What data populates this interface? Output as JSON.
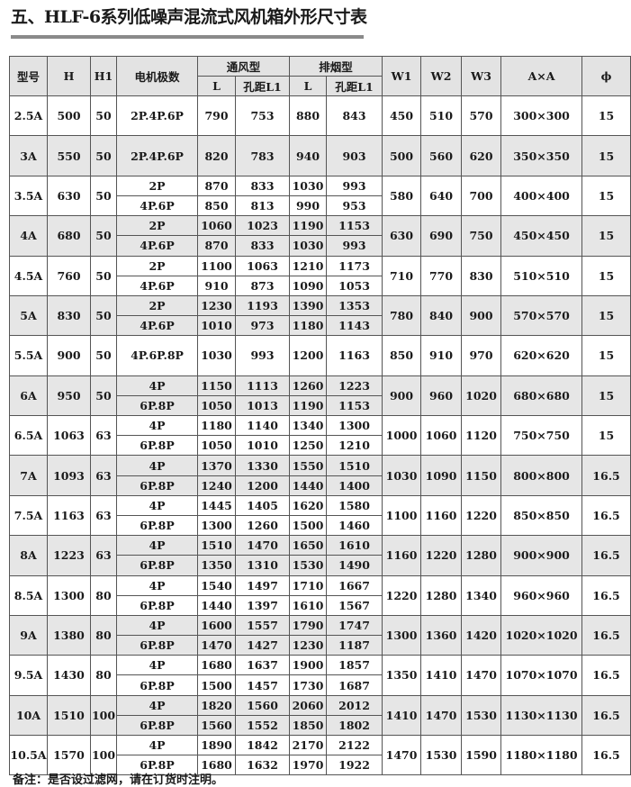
{
  "title": "五、HLF-6系列低噪声混流式风机箱外形尺寸表",
  "header": {
    "model": "型号",
    "H": "H",
    "H1": "H1",
    "poles": "电机极数",
    "vent": "通风型",
    "smoke": "排烟型",
    "L": "L",
    "L1": "孔距L1",
    "W1": "W1",
    "W2": "W2",
    "W3": "W3",
    "AxA": "A×A",
    "phi": "ϕ"
  },
  "rows": [
    {
      "model": "2.5A",
      "H": "500",
      "H1": "50",
      "sub": [
        {
          "poles": "2P.4P.6P",
          "vL": "790",
          "vL1": "753",
          "sL": "880",
          "sL1": "843"
        }
      ],
      "W1": "450",
      "W2": "510",
      "W3": "570",
      "AxA": "300×300",
      "phi": "15"
    },
    {
      "model": "3A",
      "H": "550",
      "H1": "50",
      "sub": [
        {
          "poles": "2P.4P.6P",
          "vL": "820",
          "vL1": "783",
          "sL": "940",
          "sL1": "903"
        }
      ],
      "W1": "500",
      "W2": "560",
      "W3": "620",
      "AxA": "350×350",
      "phi": "15"
    },
    {
      "model": "3.5A",
      "H": "630",
      "H1": "50",
      "sub": [
        {
          "poles": "2P",
          "vL": "870",
          "vL1": "833",
          "sL": "1030",
          "sL1": "993"
        },
        {
          "poles": "4P.6P",
          "vL": "850",
          "vL1": "813",
          "sL": "990",
          "sL1": "953"
        }
      ],
      "W1": "580",
      "W2": "640",
      "W3": "700",
      "AxA": "400×400",
      "phi": "15"
    },
    {
      "model": "4A",
      "H": "680",
      "H1": "50",
      "sub": [
        {
          "poles": "2P",
          "vL": "1060",
          "vL1": "1023",
          "sL": "1190",
          "sL1": "1153"
        },
        {
          "poles": "4P.6P",
          "vL": "870",
          "vL1": "833",
          "sL": "1030",
          "sL1": "993"
        }
      ],
      "W1": "630",
      "W2": "690",
      "W3": "750",
      "AxA": "450×450",
      "phi": "15"
    },
    {
      "model": "4.5A",
      "H": "760",
      "H1": "50",
      "sub": [
        {
          "poles": "2P",
          "vL": "1100",
          "vL1": "1063",
          "sL": "1210",
          "sL1": "1173"
        },
        {
          "poles": "4P.6P",
          "vL": "910",
          "vL1": "873",
          "sL": "1090",
          "sL1": "1053"
        }
      ],
      "W1": "710",
      "W2": "770",
      "W3": "830",
      "AxA": "510×510",
      "phi": "15"
    },
    {
      "model": "5A",
      "H": "830",
      "H1": "50",
      "sub": [
        {
          "poles": "2P",
          "vL": "1230",
          "vL1": "1193",
          "sL": "1390",
          "sL1": "1353"
        },
        {
          "poles": "4P.6P",
          "vL": "1010",
          "vL1": "973",
          "sL": "1180",
          "sL1": "1143"
        }
      ],
      "W1": "780",
      "W2": "840",
      "W3": "900",
      "AxA": "570×570",
      "phi": "15"
    },
    {
      "model": "5.5A",
      "H": "900",
      "H1": "50",
      "sub": [
        {
          "poles": "4P.6P.8P",
          "vL": "1030",
          "vL1": "993",
          "sL": "1200",
          "sL1": "1163"
        }
      ],
      "W1": "850",
      "W2": "910",
      "W3": "970",
      "AxA": "620×620",
      "phi": "15"
    },
    {
      "model": "6A",
      "H": "950",
      "H1": "50",
      "sub": [
        {
          "poles": "4P",
          "vL": "1150",
          "vL1": "1113",
          "sL": "1260",
          "sL1": "1223"
        },
        {
          "poles": "6P.8P",
          "vL": "1050",
          "vL1": "1013",
          "sL": "1190",
          "sL1": "1153"
        }
      ],
      "W1": "900",
      "W2": "960",
      "W3": "1020",
      "AxA": "680×680",
      "phi": "15"
    },
    {
      "model": "6.5A",
      "H": "1063",
      "H1": "63",
      "sub": [
        {
          "poles": "4P",
          "vL": "1180",
          "vL1": "1140",
          "sL": "1340",
          "sL1": "1300"
        },
        {
          "poles": "6P.8P",
          "vL": "1050",
          "vL1": "1010",
          "sL": "1250",
          "sL1": "1210"
        }
      ],
      "W1": "1000",
      "W2": "1060",
      "W3": "1120",
      "AxA": "750×750",
      "phi": "15"
    },
    {
      "model": "7A",
      "H": "1093",
      "H1": "63",
      "sub": [
        {
          "poles": "4P",
          "vL": "1370",
          "vL1": "1330",
          "sL": "1550",
          "sL1": "1510"
        },
        {
          "poles": "6P.8P",
          "vL": "1240",
          "vL1": "1200",
          "sL": "1440",
          "sL1": "1400"
        }
      ],
      "W1": "1030",
      "W2": "1090",
      "W3": "1150",
      "AxA": "800×800",
      "phi": "16.5"
    },
    {
      "model": "7.5A",
      "H": "1163",
      "H1": "63",
      "sub": [
        {
          "poles": "4P",
          "vL": "1445",
          "vL1": "1405",
          "sL": "1620",
          "sL1": "1580"
        },
        {
          "poles": "6P.8P",
          "vL": "1300",
          "vL1": "1260",
          "sL": "1500",
          "sL1": "1460"
        }
      ],
      "W1": "1100",
      "W2": "1160",
      "W3": "1220",
      "AxA": "850×850",
      "phi": "16.5"
    },
    {
      "model": "8A",
      "H": "1223",
      "H1": "63",
      "sub": [
        {
          "poles": "4P",
          "vL": "1510",
          "vL1": "1470",
          "sL": "1650",
          "sL1": "1610"
        },
        {
          "poles": "6P.8P",
          "vL": "1350",
          "vL1": "1310",
          "sL": "1530",
          "sL1": "1490"
        }
      ],
      "W1": "1160",
      "W2": "1220",
      "W3": "1280",
      "AxA": "900×900",
      "phi": "16.5"
    },
    {
      "model": "8.5A",
      "H": "1300",
      "H1": "80",
      "sub": [
        {
          "poles": "4P",
          "vL": "1540",
          "vL1": "1497",
          "sL": "1710",
          "sL1": "1667"
        },
        {
          "poles": "6P.8P",
          "vL": "1440",
          "vL1": "1397",
          "sL": "1610",
          "sL1": "1567"
        }
      ],
      "W1": "1220",
      "W2": "1280",
      "W3": "1340",
      "AxA": "960×960",
      "phi": "16.5"
    },
    {
      "model": "9A",
      "H": "1380",
      "H1": "80",
      "sub": [
        {
          "poles": "4P",
          "vL": "1600",
          "vL1": "1557",
          "sL": "1790",
          "sL1": "1747"
        },
        {
          "poles": "6P.8P",
          "vL": "1470",
          "vL1": "1427",
          "sL": "1230",
          "sL1": "1187"
        }
      ],
      "W1": "1300",
      "W2": "1360",
      "W3": "1420",
      "AxA": "1020×1020",
      "phi": "16.5"
    },
    {
      "model": "9.5A",
      "H": "1430",
      "H1": "80",
      "sub": [
        {
          "poles": "4P",
          "vL": "1680",
          "vL1": "1637",
          "sL": "1900",
          "sL1": "1857"
        },
        {
          "poles": "6P.8P",
          "vL": "1500",
          "vL1": "1457",
          "sL": "1730",
          "sL1": "1687"
        }
      ],
      "W1": "1350",
      "W2": "1410",
      "W3": "1470",
      "AxA": "1070×1070",
      "phi": "16.5"
    },
    {
      "model": "10A",
      "H": "1510",
      "H1": "100",
      "sub": [
        {
          "poles": "4P",
          "vL": "1820",
          "vL1": "1560",
          "sL": "2060",
          "sL1": "2012"
        },
        {
          "poles": "6P.8P",
          "vL": "1560",
          "vL1": "1552",
          "sL": "1850",
          "sL1": "1802"
        }
      ],
      "W1": "1410",
      "W2": "1470",
      "W3": "1530",
      "AxA": "1130×1130",
      "phi": "16.5"
    },
    {
      "model": "10.5A",
      "H": "1570",
      "H1": "100",
      "sub": [
        {
          "poles": "4P",
          "vL": "1890",
          "vL1": "1842",
          "sL": "2170",
          "sL1": "2122"
        },
        {
          "poles": "6P.8P",
          "vL": "1680",
          "vL1": "1632",
          "sL": "1970",
          "sL1": "1922"
        }
      ],
      "W1": "1470",
      "W2": "1530",
      "W3": "1590",
      "AxA": "1180×1180",
      "phi": "16.5"
    }
  ],
  "note": "备注：是否设过滤网，请在订货时注明。"
}
